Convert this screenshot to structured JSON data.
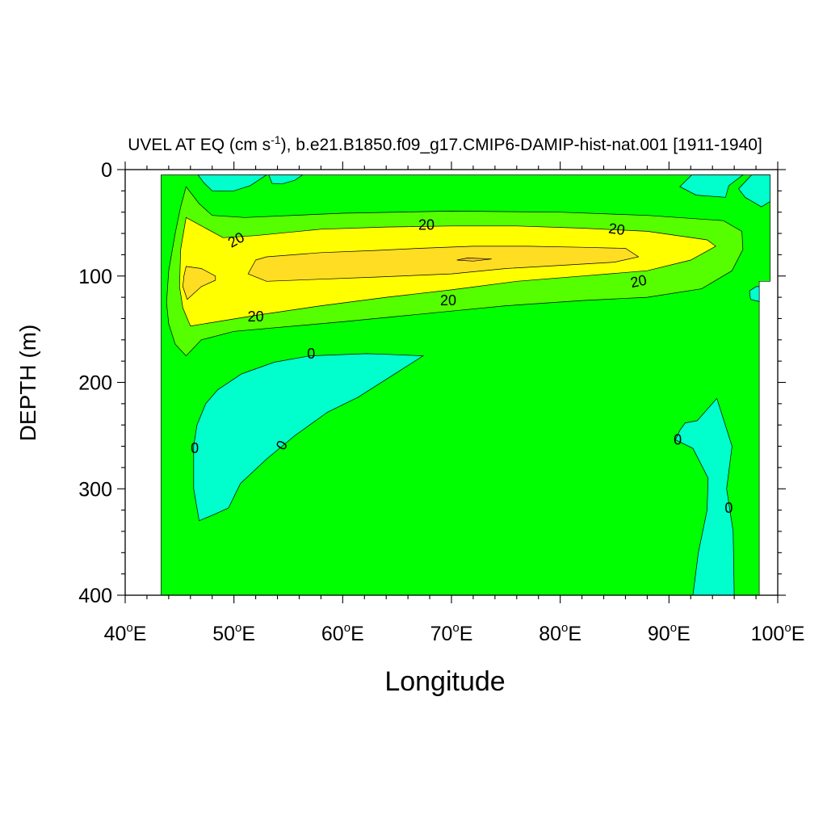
{
  "chart_data": {
    "type": "contour",
    "title": {
      "prefix": "UVEL AT EQ (cm s",
      "superscript": "-1",
      "suffix": "), b.e21.B1850.f09_g17.CMIP6-DAMIP-hist-nat.001 [1911-1940]"
    },
    "xlabel": "Longitude",
    "ylabel": "DEPTH (m)",
    "xlim": [
      40,
      100
    ],
    "ylim": [
      0,
      400
    ],
    "y_inverted": true,
    "x_ticks": [
      {
        "value": 40,
        "num": "40",
        "deg": "o",
        "hemi": "E"
      },
      {
        "value": 50,
        "num": "50",
        "deg": "o",
        "hemi": "E"
      },
      {
        "value": 60,
        "num": "60",
        "deg": "o",
        "hemi": "E"
      },
      {
        "value": 70,
        "num": "70",
        "deg": "o",
        "hemi": "E"
      },
      {
        "value": 80,
        "num": "80",
        "deg": "o",
        "hemi": "E"
      },
      {
        "value": 90,
        "num": "90",
        "deg": "o",
        "hemi": "E"
      },
      {
        "value": 100,
        "num": "100",
        "deg": "o",
        "hemi": "E"
      }
    ],
    "y_ticks": [
      {
        "value": 0,
        "label": "0"
      },
      {
        "value": 100,
        "label": "100"
      },
      {
        "value": 200,
        "label": "200"
      },
      {
        "value": 300,
        "label": "300"
      },
      {
        "value": 400,
        "label": "400"
      }
    ],
    "colors": {
      "negative": "#00ffcc",
      "zero_to_10": "#00ff00",
      "ten_to_20": "#55ff00",
      "twenty_to_30": "#ffff00",
      "thirty_to_40": "#ffdd22",
      "forty_plus": "#ffbb33"
    },
    "regions": [
      {
        "name": "base-0-to-10",
        "fill": "zero_to_10",
        "points": [
          [
            43.3,
            5
          ],
          [
            99.3,
            5
          ],
          [
            99.3,
            105
          ],
          [
            98.3,
            105
          ],
          [
            98.3,
            400
          ],
          [
            43.3,
            400
          ]
        ]
      },
      {
        "name": "neg-top-left",
        "fill": "negative",
        "points": [
          [
            46.7,
            5
          ],
          [
            53,
            5
          ],
          [
            51.5,
            15
          ],
          [
            50,
            20
          ],
          [
            48,
            20
          ],
          [
            47.2,
            12
          ]
        ]
      },
      {
        "name": "neg-top-mid",
        "fill": "negative",
        "points": [
          [
            53.2,
            5
          ],
          [
            56.3,
            5
          ],
          [
            55.6,
            10
          ],
          [
            54.4,
            13.5
          ],
          [
            53.5,
            13
          ]
        ]
      },
      {
        "name": "neg-top-right",
        "fill": "negative",
        "points": [
          [
            92.1,
            5
          ],
          [
            96.8,
            5
          ],
          [
            95.5,
            15
          ],
          [
            95.2,
            26
          ],
          [
            92.5,
            24
          ],
          [
            91,
            16
          ]
        ]
      },
      {
        "name": "neg-top-far-right",
        "fill": "negative",
        "points": [
          [
            97.6,
            5
          ],
          [
            99.3,
            5
          ],
          [
            99.3,
            30
          ],
          [
            98.5,
            35
          ],
          [
            97,
            26
          ],
          [
            96.4,
            18
          ]
        ]
      },
      {
        "name": "neg-small-right",
        "fill": "negative",
        "points": [
          [
            98,
            110
          ],
          [
            98.3,
            110
          ],
          [
            98.3,
            124
          ],
          [
            97.5,
            122
          ],
          [
            97.4,
            114
          ]
        ]
      },
      {
        "name": "neg-lower-left",
        "fill": "negative",
        "points": [
          [
            46.8,
            330
          ],
          [
            46.3,
            300
          ],
          [
            46.3,
            260
          ],
          [
            46.6,
            240
          ],
          [
            47.4,
            220
          ],
          [
            48.5,
            207
          ],
          [
            50.7,
            192
          ],
          [
            53.7,
            181
          ],
          [
            57,
            175
          ],
          [
            62.2,
            173
          ],
          [
            64.9,
            174
          ],
          [
            67.4,
            175
          ],
          [
            65.1,
            190
          ],
          [
            61.4,
            214
          ],
          [
            58.6,
            228
          ],
          [
            55.6,
            250
          ],
          [
            53,
            272
          ],
          [
            50.6,
            295
          ],
          [
            49.5,
            318
          ],
          [
            48.2,
            324
          ]
        ]
      },
      {
        "name": "neg-lower-right",
        "fill": "negative",
        "points": [
          [
            94.4,
            215
          ],
          [
            95.8,
            260
          ],
          [
            95.3,
            300
          ],
          [
            95.9,
            340
          ],
          [
            96,
            400
          ],
          [
            92.2,
            400
          ],
          [
            92.7,
            360
          ],
          [
            93.5,
            320
          ],
          [
            93.6,
            290
          ],
          [
            92.2,
            262
          ],
          [
            90.6,
            254
          ],
          [
            91,
            245
          ],
          [
            91.5,
            238
          ],
          [
            92.6,
            236
          ]
        ]
      },
      {
        "name": "band-10-to-20",
        "fill": "ten_to_20",
        "points": [
          [
            45.6,
            16
          ],
          [
            46.8,
            32
          ],
          [
            48,
            43
          ],
          [
            51,
            45
          ],
          [
            60,
            41
          ],
          [
            70,
            39
          ],
          [
            80,
            40
          ],
          [
            88,
            43
          ],
          [
            95,
            48
          ],
          [
            96.7,
            58
          ],
          [
            96.8,
            75
          ],
          [
            95.8,
            95
          ],
          [
            93,
            112
          ],
          [
            88,
            120
          ],
          [
            82,
            123
          ],
          [
            75,
            128
          ],
          [
            70,
            133
          ],
          [
            60,
            143
          ],
          [
            50,
            152
          ],
          [
            47,
            160
          ],
          [
            45.6,
            175
          ],
          [
            44.6,
            164
          ],
          [
            44,
            145
          ],
          [
            43.8,
            125
          ],
          [
            44,
            95
          ],
          [
            44.6,
            60
          ],
          [
            45.1,
            35
          ]
        ]
      },
      {
        "name": "band-20-to-30",
        "fill": "twenty_to_30",
        "points": [
          [
            45.6,
            45
          ],
          [
            49,
            64
          ],
          [
            52,
            62
          ],
          [
            58,
            56
          ],
          [
            64,
            54
          ],
          [
            70,
            53
          ],
          [
            76,
            53
          ],
          [
            82,
            55
          ],
          [
            88,
            58
          ],
          [
            93.5,
            66
          ],
          [
            94.3,
            72
          ],
          [
            92,
            85
          ],
          [
            88,
            95
          ],
          [
            82,
            100
          ],
          [
            76,
            105
          ],
          [
            70,
            113
          ],
          [
            64,
            120
          ],
          [
            58,
            128
          ],
          [
            52,
            137
          ],
          [
            46,
            147
          ],
          [
            45.3,
            130
          ],
          [
            45,
            110
          ],
          [
            45.1,
            75
          ]
        ]
      },
      {
        "name": "band-30-to-40",
        "fill": "thirty_to_40",
        "points": [
          [
            52,
            85
          ],
          [
            53,
            82
          ],
          [
            58,
            78
          ],
          [
            63,
            76
          ],
          [
            67,
            74
          ],
          [
            72,
            72
          ],
          [
            77,
            72
          ],
          [
            82,
            73
          ],
          [
            86,
            74
          ],
          [
            87.2,
            82
          ],
          [
            85,
            87
          ],
          [
            80,
            90
          ],
          [
            75,
            93
          ],
          [
            70,
            98
          ],
          [
            63,
            101
          ],
          [
            58,
            103
          ],
          [
            53,
            105
          ],
          [
            51.3,
            98
          ]
        ]
      },
      {
        "name": "band-30-to-40-left",
        "fill": "thirty_to_40",
        "points": [
          [
            45.6,
            91
          ],
          [
            47,
            93
          ],
          [
            48.3,
            100
          ],
          [
            48.3,
            104
          ],
          [
            47,
            110
          ],
          [
            45.7,
            122
          ],
          [
            45.3,
            110
          ],
          [
            45.4,
            100
          ]
        ]
      },
      {
        "name": "band-40-plus",
        "fill": "forty_plus",
        "points": [
          [
            70.5,
            85
          ],
          [
            71.5,
            83
          ],
          [
            73.7,
            84
          ],
          [
            72,
            86
          ]
        ]
      }
    ],
    "contour_labels": [
      {
        "text": "20",
        "x": 50.2,
        "y": 66,
        "rotate": -28
      },
      {
        "text": "20",
        "x": 67.7,
        "y": 52,
        "rotate": 0
      },
      {
        "text": "20",
        "x": 85.2,
        "y": 56,
        "rotate": 8
      },
      {
        "text": "20",
        "x": 87.2,
        "y": 105,
        "rotate": -12
      },
      {
        "text": "20",
        "x": 69.7,
        "y": 123,
        "rotate": 0
      },
      {
        "text": "20",
        "x": 52.0,
        "y": 138,
        "rotate": 0
      },
      {
        "text": "0",
        "x": 57.1,
        "y": 173,
        "rotate": 0
      },
      {
        "text": "0",
        "x": 46.4,
        "y": 262,
        "rotate": 0
      },
      {
        "text": "0",
        "x": 54.4,
        "y": 259,
        "rotate": -60
      },
      {
        "text": "0",
        "x": 90.8,
        "y": 254,
        "rotate": 0
      },
      {
        "text": "0",
        "x": 95.5,
        "y": 318,
        "rotate": 0
      }
    ]
  }
}
